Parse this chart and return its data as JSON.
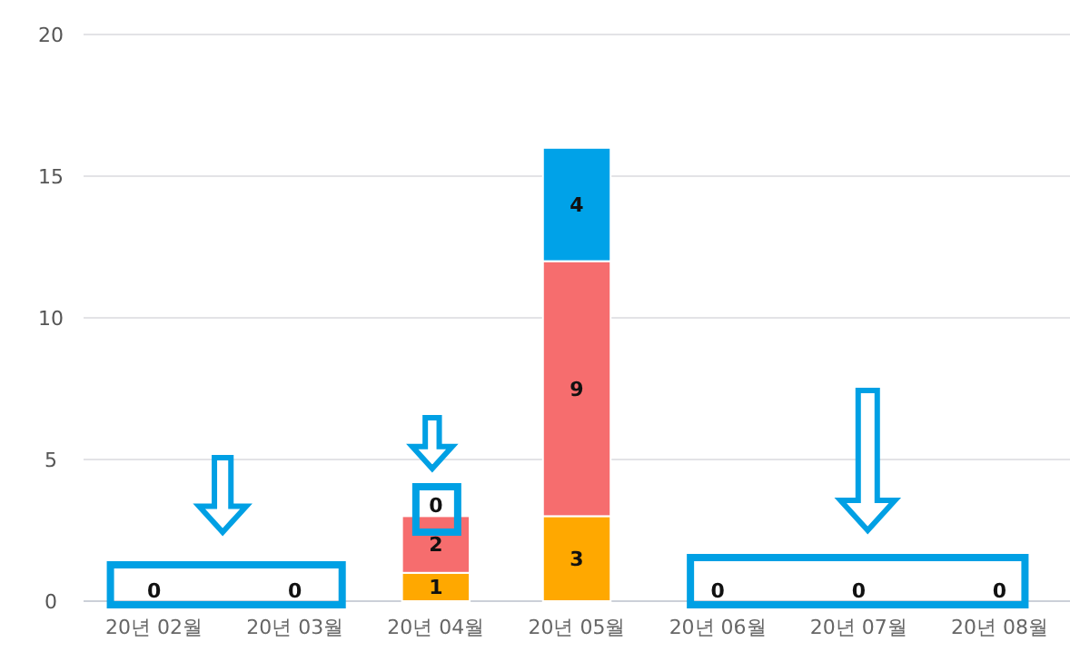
{
  "chart_data": {
    "type": "bar",
    "stacked": true,
    "categories": [
      "20년 02월",
      "20년 03월",
      "20년 04월",
      "20년 05월",
      "20년 06월",
      "20년 07월",
      "20년 08월"
    ],
    "series": [
      {
        "color": "#ffa800",
        "values": [
          0,
          0,
          1,
          3,
          0,
          0,
          0
        ],
        "value_labels": [
          "0",
          "0",
          "1",
          "3",
          "0",
          "0",
          "0"
        ]
      },
      {
        "color": "#f66d6e",
        "values": [
          0,
          0,
          2,
          9,
          0,
          0,
          0
        ],
        "value_labels": [
          null,
          null,
          "2",
          "9",
          null,
          null,
          null
        ]
      },
      {
        "color": "#00a2e8",
        "values": [
          0,
          0,
          0,
          4,
          0,
          0,
          0
        ],
        "value_labels": [
          null,
          null,
          "0",
          "4",
          null,
          null,
          null
        ]
      }
    ],
    "ylim": [
      0,
      20
    ],
    "yticks": [
      0,
      5,
      10,
      15,
      20
    ],
    "grid": "y"
  }
}
